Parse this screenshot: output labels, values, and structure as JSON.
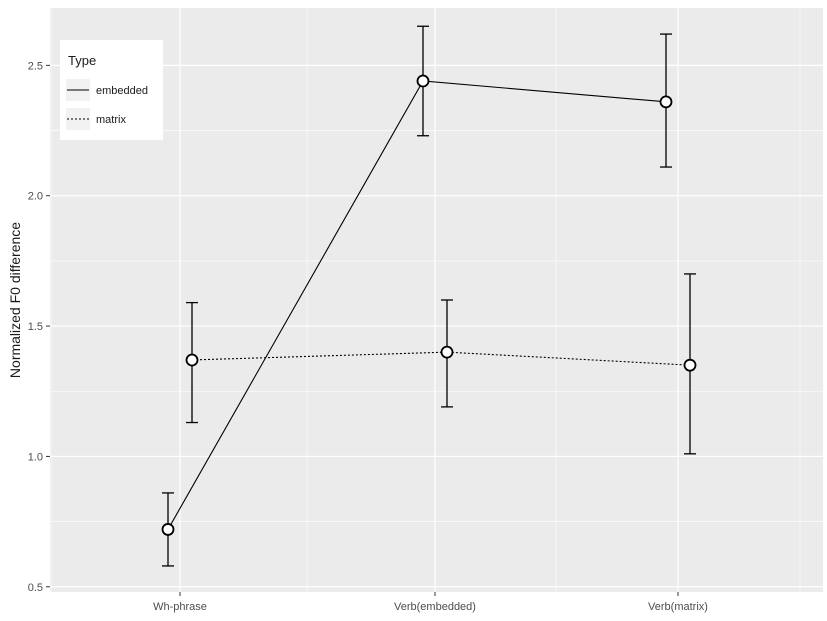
{
  "chart_data": {
    "type": "line",
    "xlabel": "",
    "ylabel": "Normalized F0 difference",
    "categories": [
      "Wh-phrase",
      "Verb(embedded)",
      "Verb(matrix)"
    ],
    "ylim": [
      0.48,
      2.72
    ],
    "yticks": [
      0.5,
      1.0,
      1.5,
      2.0,
      2.5
    ],
    "ytick_labels": [
      "0.5",
      "1.0",
      "1.5",
      "2.0",
      "2.5"
    ],
    "grid": true,
    "legend": {
      "title": "Type",
      "position": "top-left",
      "entries": [
        {
          "name": "embedded",
          "linetype": "solid"
        },
        {
          "name": "matrix",
          "linetype": "dotted"
        }
      ]
    },
    "series": [
      {
        "name": "embedded",
        "linetype": "solid",
        "values": [
          0.72,
          2.44,
          2.36
        ],
        "error_low": [
          0.58,
          2.23,
          2.11
        ],
        "error_high": [
          0.86,
          2.65,
          2.62
        ]
      },
      {
        "name": "matrix",
        "linetype": "dotted",
        "values": [
          1.37,
          1.4,
          1.35
        ],
        "error_low": [
          1.13,
          1.19,
          1.01
        ],
        "error_high": [
          1.59,
          1.6,
          1.7
        ]
      }
    ],
    "colors": {
      "panel_background": "#ebebeb",
      "grid": "#ffffff",
      "line": "#000000",
      "point_fill": "#ffffff"
    }
  }
}
